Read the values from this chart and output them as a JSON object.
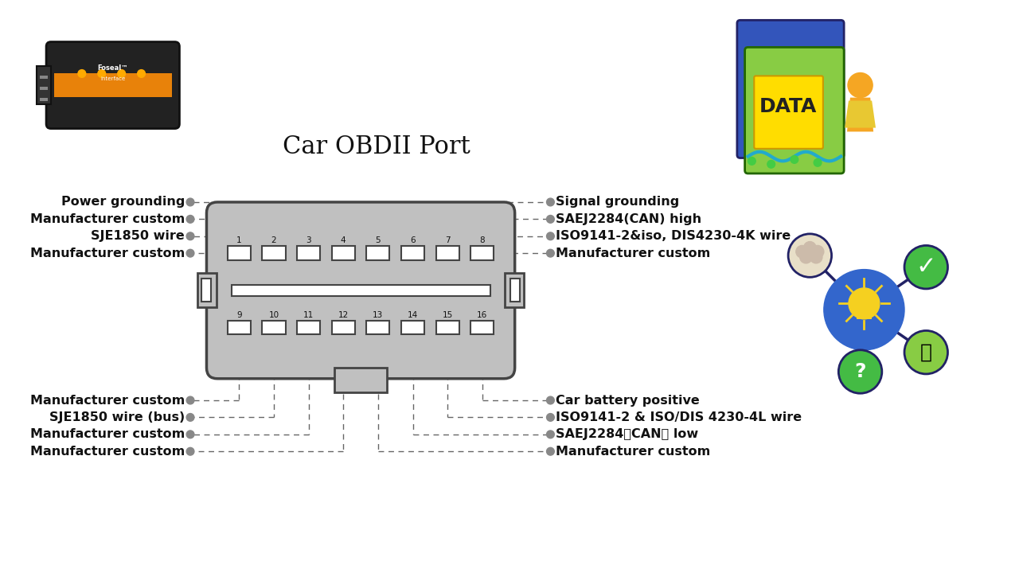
{
  "title": "Car OBDII Port",
  "background_color": "#ffffff",
  "left_top_labels": [
    {
      "text": "Power grounding",
      "pin_idx": 0
    },
    {
      "text": "Manufacturer custom",
      "pin_idx": 1
    },
    {
      "text": "SJE1850 wire",
      "pin_idx": 2
    },
    {
      "text": "Manufacturer custom",
      "pin_idx": 3
    }
  ],
  "right_top_labels": [
    {
      "text": "Signal grounding",
      "pin_idx": 4
    },
    {
      "text": "SAEJ2284(CAN) high",
      "pin_idx": 5
    },
    {
      "text": "ISO9141-2&iso, DIS4230-4K wire",
      "pin_idx": 6
    },
    {
      "text": "Manufacturer custom",
      "pin_idx": 7
    }
  ],
  "left_bot_labels": [
    {
      "text": "Manufacturer custom",
      "pin_idx": 0
    },
    {
      "text": "SJE1850 wire (bus)",
      "pin_idx": 1
    },
    {
      "text": "Manufacturer custom",
      "pin_idx": 2
    },
    {
      "text": "Manufacturer custom",
      "pin_idx": 3
    }
  ],
  "right_bot_labels": [
    {
      "text": "Car battery positive",
      "pin_idx": 7
    },
    {
      "text": "ISO9141-2 & ISO/DIS 4230-4L wire",
      "pin_idx": 6
    },
    {
      "text": "SAEJ2284「CAN」 low",
      "pin_idx": 5
    },
    {
      "text": "Manufacturer custom",
      "pin_idx": 4
    }
  ],
  "connector_color": "#c0c0c0",
  "connector_outline": "#444444",
  "pin_fill": "#ffffff",
  "dot_color": "#888888",
  "line_color": "#666666",
  "text_color": "#111111",
  "title_fontsize": 22,
  "label_fontsize": 11.5,
  "pin_label_fontsize": 7.5
}
